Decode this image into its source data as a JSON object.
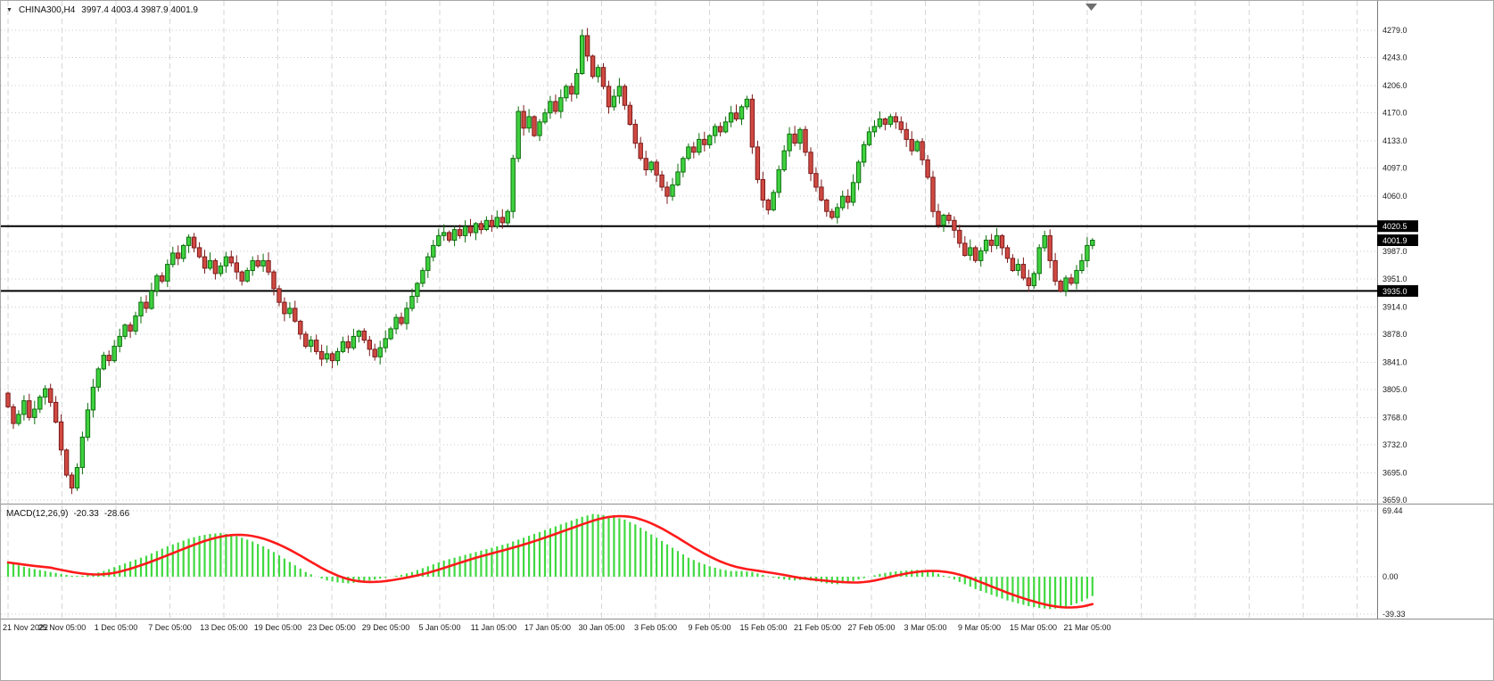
{
  "header": {
    "dropdown_icon": "▼",
    "symbol": "CHINA300,H4",
    "ohlc_text": "3997.4 4003.4 3987.9 4001.9"
  },
  "macd_panel": {
    "label": "MACD(12,26,9)",
    "value_main": "-20.33",
    "value_signal": "-28.66"
  },
  "colors": {
    "background": "#ffffff",
    "grid": "#d6d6d6",
    "grid_dots": "#cbcbcb",
    "bull_fill": "#3fd23f",
    "bull_stroke": "#0d6e0d",
    "bear_fill": "#d04a42",
    "bear_stroke": "#7c1a1a",
    "macd_histogram": "#41d941",
    "macd_signal": "#ff1a1a",
    "level_line": "#000000",
    "price_box_bg": "#000000",
    "price_box_text": "#ffffff",
    "axis_border": "#7a7a7a",
    "text": "#1a1a1a",
    "shift_marker": "#6e6e6e"
  },
  "chart_data": [
    {
      "type": "candlestick",
      "title": "CHINA300,H4",
      "current_bar_ohlc": {
        "open": 3997.4,
        "high": 4003.4,
        "low": 3987.9,
        "close": 4001.9
      },
      "x_labels": [
        "21 Nov 2022",
        "25 Nov 05:00",
        "1 Dec 05:00",
        "7 Dec 05:00",
        "13 Dec 05:00",
        "19 Dec 05:00",
        "23 Dec 05:00",
        "29 Dec 05:00",
        "5 Jan 05:00",
        "11 Jan 05:00",
        "17 Jan 05:00",
        "30 Jan 05:00",
        "3 Feb 05:00",
        "9 Feb 05:00",
        "15 Feb 05:00",
        "21 Feb 05:00",
        "27 Feb 05:00",
        "3 Mar 05:00",
        "9 Mar 05:00",
        "15 Mar 05:00",
        "21 Mar 05:00"
      ],
      "y_ticks": [
        4279.0,
        4243.0,
        4206.0,
        4170.0,
        4133.0,
        4097.0,
        4060.0,
        3987.0,
        3951.0,
        3914.0,
        3878.0,
        3841.0,
        3805.0,
        3768.0,
        3732.0,
        3695.0,
        3659.0
      ],
      "hlines": [
        {
          "price": 4020.5,
          "label": "4020.5"
        },
        {
          "price": 3935.0,
          "label": "3935.0"
        }
      ],
      "current_price": {
        "price": 4001.9,
        "label": "4001.9"
      },
      "first_open": 3800,
      "closes": [
        3782,
        3760,
        3772,
        3790,
        3768,
        3779,
        3795,
        3806,
        3788,
        3762,
        3725,
        3692,
        3675,
        3702,
        3742,
        3778,
        3808,
        3832,
        3850,
        3843,
        3862,
        3875,
        3890,
        3882,
        3902,
        3920,
        3912,
        3935,
        3955,
        3948,
        3970,
        3985,
        3978,
        3995,
        4006,
        3992,
        3980,
        3965,
        3975,
        3958,
        3968,
        3980,
        3972,
        3960,
        3948,
        3962,
        3975,
        3968,
        3975,
        3960,
        3938,
        3920,
        3905,
        3912,
        3895,
        3878,
        3862,
        3870,
        3855,
        3845,
        3852,
        3843,
        3855,
        3868,
        3860,
        3875,
        3882,
        3870,
        3858,
        3848,
        3860,
        3872,
        3885,
        3900,
        3892,
        3912,
        3928,
        3945,
        3962,
        3980,
        3995,
        4008,
        4012,
        4002,
        4016,
        4008,
        4020,
        4012,
        4024,
        4016,
        4028,
        4020,
        4032,
        4025,
        4040,
        4110,
        4172,
        4150,
        4165,
        4140,
        4158,
        4170,
        4185,
        4172,
        4190,
        4205,
        4195,
        4222,
        4272,
        4245,
        4218,
        4230,
        4205,
        4178,
        4192,
        4205,
        4180,
        4155,
        4130,
        4110,
        4095,
        4105,
        4088,
        4072,
        4060,
        4075,
        4092,
        4110,
        4125,
        4118,
        4135,
        4128,
        4140,
        4152,
        4145,
        4158,
        4170,
        4162,
        4178,
        4188,
        4125,
        4082,
        4055,
        4042,
        4065,
        4095,
        4120,
        4142,
        4130,
        4148,
        4118,
        4090,
        4072,
        4055,
        4040,
        4032,
        4045,
        4060,
        4052,
        4078,
        4105,
        4128,
        4145,
        4152,
        4162,
        4155,
        4165,
        4158,
        4148,
        4135,
        4120,
        4132,
        4108,
        4085,
        4040,
        4022,
        4035,
        4028,
        4015,
        3998,
        3982,
        3992,
        3975,
        3988,
        4002,
        3995,
        4008,
        3992,
        3978,
        3962,
        3970,
        3952,
        3942,
        3958,
        3992,
        4008,
        3975,
        3948,
        3935,
        3952,
        3945,
        3962,
        3975,
        3995,
        4001.9
      ]
    },
    {
      "type": "bar+line",
      "title": "MACD(12,26,9)",
      "last_values": {
        "macd": -20.33,
        "signal": -28.66
      },
      "signal_period": 9,
      "y_ticks": [
        {
          "label": "69.44",
          "value": 69.44
        },
        {
          "label": "0.00",
          "value": 0
        },
        {
          "label": "-39.33",
          "value": -39.33
        }
      ],
      "histogram": [
        15,
        13.5,
        12,
        10.5,
        9,
        8,
        7,
        6,
        5,
        4,
        3,
        2,
        1,
        1,
        1,
        2,
        3,
        4.5,
        6,
        8,
        10,
        12,
        14,
        16,
        18,
        20,
        22,
        24.5,
        27,
        29.5,
        32,
        34,
        36,
        38,
        40,
        41.5,
        43,
        44,
        45,
        45.5,
        46,
        45,
        44,
        42.5,
        41,
        39,
        37,
        34.5,
        32,
        29,
        26,
        22.5,
        19,
        15.5,
        12,
        8.5,
        5,
        2.5,
        0,
        -2,
        -4,
        -5,
        -6,
        -6.5,
        -7,
        -6.5,
        -6,
        -5,
        -4,
        -3,
        -2,
        -1,
        0,
        1,
        2,
        3.5,
        5,
        7,
        9,
        11,
        13,
        15,
        17,
        18.5,
        20,
        21.5,
        23,
        24.5,
        26,
        27.5,
        29,
        30.5,
        32,
        33.5,
        35,
        37,
        39,
        41,
        43,
        45,
        47,
        49,
        51,
        53,
        55,
        57,
        59,
        61,
        63,
        64.5,
        66,
        65.5,
        65,
        64,
        63,
        61.5,
        60,
        57.5,
        55,
        51.5,
        48,
        44.5,
        41,
        37.5,
        34,
        30.5,
        27,
        23.5,
        20,
        17.5,
        15,
        13,
        11,
        9.5,
        8,
        7,
        6,
        6,
        6,
        5.5,
        5,
        3.5,
        2,
        0.5,
        -1,
        -2,
        -3,
        -3.5,
        -4,
        -3.5,
        -3,
        -4,
        -5,
        -6,
        -7,
        -7.5,
        -8,
        -7,
        -6,
        -4.5,
        -3,
        -1.5,
        0,
        1.5,
        3,
        4,
        5,
        5.5,
        6,
        6.5,
        7,
        7,
        7,
        6,
        5,
        3,
        1,
        -1,
        -3,
        -5.5,
        -8,
        -10.5,
        -13,
        -15,
        -17,
        -19,
        -21,
        -23,
        -25,
        -26.5,
        -28,
        -29.5,
        -31,
        -32,
        -33,
        -33.5,
        -34,
        -33.5,
        -33,
        -31.5,
        -30,
        -28,
        -26,
        -23,
        -20.33
      ]
    }
  ]
}
